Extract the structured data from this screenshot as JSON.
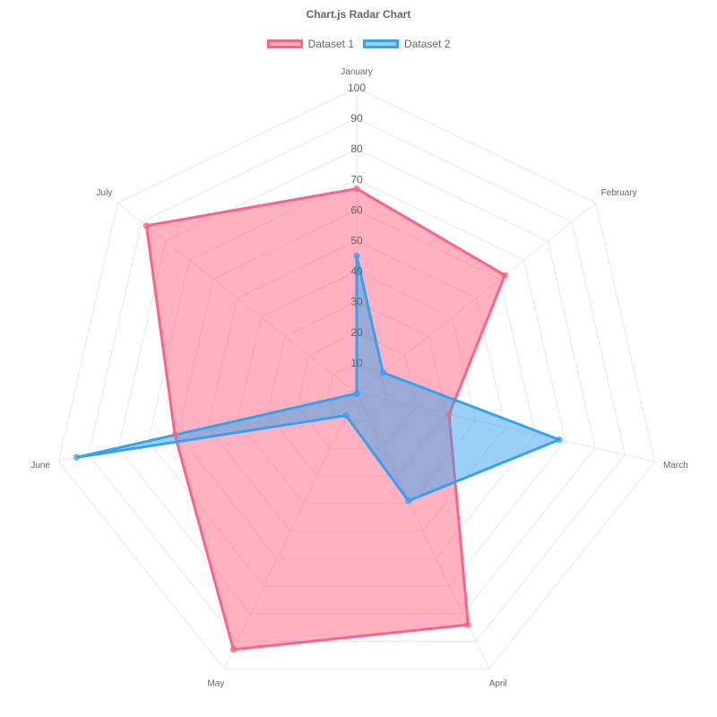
{
  "chart_data": {
    "type": "radar",
    "title": "Chart.js Radar Chart",
    "labels": [
      "January",
      "February",
      "March",
      "April",
      "May",
      "June",
      "July"
    ],
    "r_range": [
      0,
      100
    ],
    "r_ticks": [
      10,
      20,
      30,
      40,
      50,
      60,
      70,
      80,
      90,
      100
    ],
    "grid": true,
    "legend_position": "top",
    "series": [
      {
        "name": "Dataset 1",
        "values": [
          67,
          62,
          31,
          84,
          93,
          61,
          88
        ],
        "border_color": "#ff6384",
        "fill_color": "rgba(255,99,132,0.5)"
      },
      {
        "name": "Dataset 2",
        "values": [
          45,
          11,
          68,
          39,
          8,
          94,
          0
        ],
        "border_color": "#36a2eb",
        "fill_color": "rgba(54,162,235,0.5)"
      }
    ]
  }
}
